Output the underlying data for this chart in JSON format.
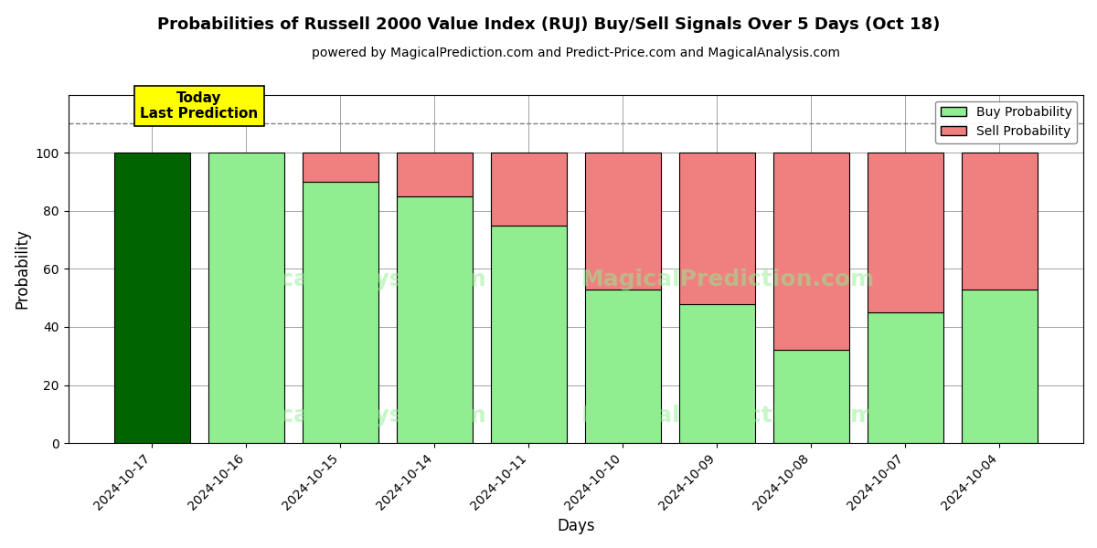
{
  "title": "Probabilities of Russell 2000 Value Index (RUJ) Buy/Sell Signals Over 5 Days (Oct 18)",
  "subtitle": "powered by MagicalPrediction.com and Predict-Price.com and MagicalAnalysis.com",
  "xlabel": "Days",
  "ylabel": "Probability",
  "dates": [
    "2024-10-17",
    "2024-10-16",
    "2024-10-15",
    "2024-10-14",
    "2024-10-11",
    "2024-10-10",
    "2024-10-09",
    "2024-10-08",
    "2024-10-07",
    "2024-10-04"
  ],
  "buy_probs": [
    100,
    100,
    90,
    85,
    75,
    53,
    48,
    32,
    45,
    53
  ],
  "sell_probs": [
    0,
    0,
    10,
    15,
    25,
    47,
    52,
    68,
    55,
    47
  ],
  "buy_color_first": "#006400",
  "buy_color_rest": "#90EE90",
  "sell_color": "#F08080",
  "bar_edge_color": "#000000",
  "annotation_text": "Today\nLast Prediction",
  "annotation_bg": "#FFFF00",
  "dashed_line_y": 110,
  "ylim": [
    0,
    120
  ],
  "yticks": [
    0,
    20,
    40,
    60,
    80,
    100
  ],
  "legend_buy_label": "Buy Probability",
  "legend_sell_label": "Sell Probability",
  "figsize": [
    12,
    6
  ],
  "dpi": 100
}
